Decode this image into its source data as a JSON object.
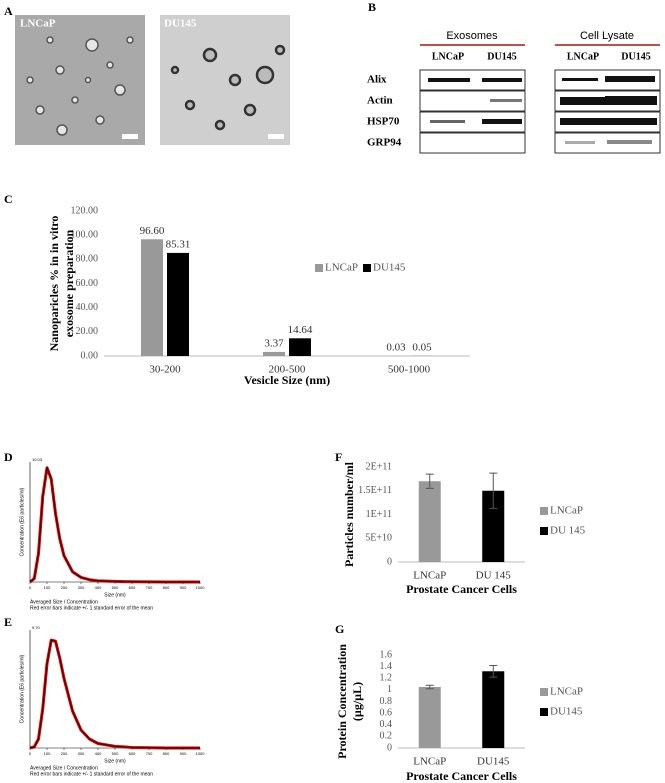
{
  "panel_labels": [
    "A",
    "B",
    "C",
    "D",
    "E",
    "F",
    "G"
  ],
  "micrographs": [
    {
      "label": "LNCaP"
    },
    {
      "label": "DU145"
    }
  ],
  "blot": {
    "groups": [
      {
        "title": "Exosomes",
        "lanes": [
          "LNCaP",
          "DU145"
        ]
      },
      {
        "title": "Cell Lysate",
        "lanes": [
          "LNCaP",
          "DU145"
        ]
      }
    ],
    "proteins": [
      "Alix",
      "Actin",
      "HSP70",
      "GRP94"
    ]
  },
  "chart_data": [
    {
      "type": "bar",
      "xlabel": "Vesicle Size (nm)",
      "ylabel": [
        "Nanoparicles % in in vitro",
        "exosome preparation"
      ],
      "categories": [
        "30-200",
        "200-500",
        "500-1000"
      ],
      "series": [
        {
          "name": "LNCaP",
          "color": "#999999",
          "values": [
            96.6,
            3.37,
            0.03
          ],
          "value_labels": [
            "96.60",
            "3.37",
            "0.03"
          ]
        },
        {
          "name": "DU145",
          "color": "#000000",
          "values": [
            85.31,
            14.64,
            0.05
          ],
          "value_labels": [
            "85.31",
            "14.64",
            "0.05"
          ]
        }
      ],
      "ylim": [
        0,
        120
      ],
      "yticks": [
        {
          "value": 0,
          "label": "0.00"
        },
        {
          "value": 20,
          "label": "20.00"
        },
        {
          "value": 40,
          "label": "40.00"
        },
        {
          "value": 60,
          "label": "60.00"
        },
        {
          "value": 80,
          "label": "80.00"
        },
        {
          "value": 100,
          "label": "100.00"
        },
        {
          "value": 120,
          "label": "120.00"
        }
      ],
      "legend": "right",
      "grid": false
    },
    {
      "type": "line",
      "xlabel": "Size (nm)",
      "ylabel": [
        "Concentration (E6 particles/ml)"
      ],
      "annotation": "10.03",
      "notes": [
        "Averaged Size / Concentration",
        "Red error bars indicate +/- 1 standard error of the mean"
      ],
      "x": [
        0,
        25,
        50,
        75,
        100,
        125,
        150,
        175,
        200,
        250,
        300,
        350,
        400,
        500,
        600,
        800,
        1000
      ],
      "series": [
        {
          "color": "#d00000",
          "values": [
            0,
            0.3,
            2.5,
            7.5,
            10,
            9,
            6,
            3.8,
            2.3,
            0.9,
            0.4,
            0.2,
            0.1,
            0.05,
            0.02,
            0,
            0
          ]
        }
      ],
      "line_color": "#000000",
      "xlim": [
        0,
        1000
      ],
      "xticks": [
        0,
        100,
        200,
        300,
        400,
        500,
        600,
        700,
        800,
        900,
        1000
      ],
      "ylim": [
        0,
        10.5
      ]
    },
    {
      "type": "line",
      "xlabel": "Size (nm)",
      "ylabel": [
        "Concentration (E6 particles/ml)"
      ],
      "annotation": "9.70",
      "notes": [
        "Averaged Size / Concentration",
        "Red error bars indicate +/- 1 standard error of the mean"
      ],
      "x": [
        0,
        25,
        50,
        75,
        100,
        125,
        150,
        175,
        200,
        250,
        300,
        350,
        400,
        500,
        600,
        800,
        1000
      ],
      "series": [
        {
          "color": "#d00000",
          "values": [
            0,
            0.1,
            0.8,
            3.5,
            7.5,
            9.6,
            9.5,
            8,
            6.2,
            3.3,
            1.6,
            0.8,
            0.4,
            0.15,
            0.05,
            0,
            0
          ]
        }
      ],
      "line_color": "#000000",
      "xlim": [
        0,
        1000
      ],
      "xticks": [
        0,
        100,
        200,
        300,
        400,
        500,
        600,
        700,
        800,
        900,
        1000
      ],
      "ylim": [
        0,
        10.5
      ]
    },
    {
      "type": "bar",
      "xlabel": "Prostate Cancer Cells",
      "ylabel": [
        "Particles number/ml"
      ],
      "categories": [
        "LNCaP",
        "DU 145"
      ],
      "series": [
        {
          "name": "LNCaP",
          "color": "#999999",
          "values": [
            170000000000,
            null
          ],
          "errors": [
            15000000000,
            null
          ]
        },
        {
          "name": "DU 145",
          "color": "#000000",
          "values": [
            null,
            150000000000
          ],
          "errors": [
            null,
            37000000000
          ]
        }
      ],
      "ylim": [
        0,
        200000000000
      ],
      "yticks": [
        0,
        {
          "value": 50000000000,
          "label": "5E+10"
        },
        {
          "value": 100000000000,
          "label": "1E+11"
        },
        {
          "value": 150000000000,
          "label": "1.5E+11"
        },
        {
          "value": 200000000000,
          "label": "2E+11"
        }
      ],
      "legend": "right",
      "grid": false
    },
    {
      "type": "bar",
      "xlabel": "Prostate Cancer Cells",
      "ylabel": [
        "Protein Concentration",
        "(µg/µL)"
      ],
      "categories": [
        "LNCaP",
        "DU145"
      ],
      "series": [
        {
          "name": "LNCaP",
          "color": "#999999",
          "values": [
            1.05,
            null
          ],
          "errors": [
            0.03,
            null
          ]
        },
        {
          "name": "DU145",
          "color": "#000000",
          "values": [
            null,
            1.32
          ],
          "errors": [
            null,
            0.1
          ]
        }
      ],
      "ylim": [
        0,
        1.6
      ],
      "yticks": [
        0,
        0.2,
        0.4,
        0.6,
        0.8,
        1,
        1.2,
        1.4,
        1.6
      ],
      "legend": "right",
      "grid": false
    }
  ]
}
